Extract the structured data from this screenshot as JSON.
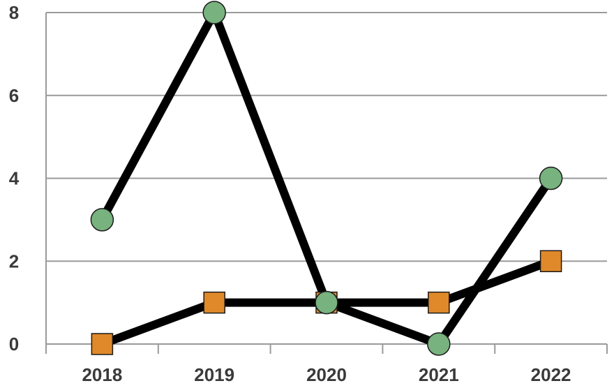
{
  "chart_data": {
    "type": "line",
    "categories": [
      "2018",
      "2019",
      "2020",
      "2021",
      "2022"
    ],
    "series": [
      {
        "values": [
          3,
          8,
          1,
          0,
          4
        ],
        "marker": "circle",
        "marker_color": "#78b27f",
        "line_color": "#000000"
      },
      {
        "values": [
          0,
          1,
          1,
          1,
          2
        ],
        "marker": "square",
        "marker_color": "#e0892a",
        "line_color": "#000000"
      }
    ],
    "title": "",
    "xlabel": "",
    "ylabel": "",
    "ylim": [
      0,
      8
    ],
    "yticks": [
      "0",
      "2",
      "4",
      "6",
      "8"
    ],
    "grid": true,
    "legend": "none"
  }
}
